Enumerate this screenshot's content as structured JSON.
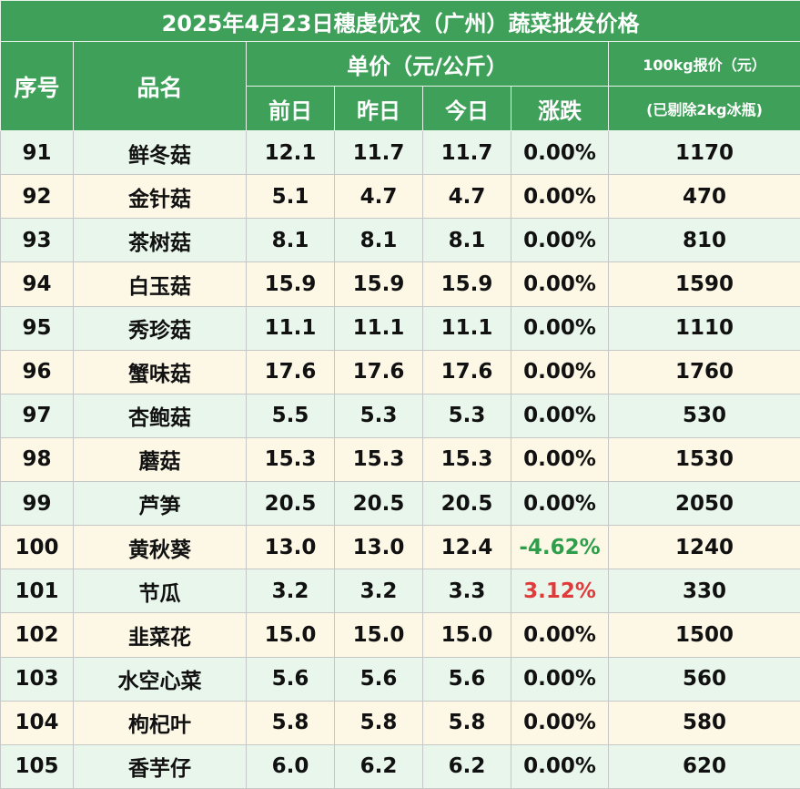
{
  "title": "2025年4月23日穗虔优农（广州）蔬菜批发价格",
  "headers": {
    "index": "序号",
    "name": "品名",
    "unit_price": "单价（元/公斤）",
    "prev_day": "前日",
    "yesterday": "昨日",
    "today": "今日",
    "change": "涨跌",
    "quote_100kg": "100kg报价（元）",
    "quote_note": "(已剔除2kg冰瓶)"
  },
  "rows": [
    {
      "index": "91",
      "name": "鲜冬菇",
      "prev": "12.1",
      "yest": "11.7",
      "today": "11.7",
      "change": "0.00%",
      "quote": "1170",
      "trend": "flat"
    },
    {
      "index": "92",
      "name": "金针菇",
      "prev": "5.1",
      "yest": "4.7",
      "today": "4.7",
      "change": "0.00%",
      "quote": "470",
      "trend": "flat"
    },
    {
      "index": "93",
      "name": "茶树菇",
      "prev": "8.1",
      "yest": "8.1",
      "today": "8.1",
      "change": "0.00%",
      "quote": "810",
      "trend": "flat"
    },
    {
      "index": "94",
      "name": "白玉菇",
      "prev": "15.9",
      "yest": "15.9",
      "today": "15.9",
      "change": "0.00%",
      "quote": "1590",
      "trend": "flat"
    },
    {
      "index": "95",
      "name": "秀珍菇",
      "prev": "11.1",
      "yest": "11.1",
      "today": "11.1",
      "change": "0.00%",
      "quote": "1110",
      "trend": "flat"
    },
    {
      "index": "96",
      "name": "蟹味菇",
      "prev": "17.6",
      "yest": "17.6",
      "today": "17.6",
      "change": "0.00%",
      "quote": "1760",
      "trend": "flat"
    },
    {
      "index": "97",
      "name": "杏鲍菇",
      "prev": "5.5",
      "yest": "5.3",
      "today": "5.3",
      "change": "0.00%",
      "quote": "530",
      "trend": "flat"
    },
    {
      "index": "98",
      "name": "蘑菇",
      "prev": "15.3",
      "yest": "15.3",
      "today": "15.3",
      "change": "0.00%",
      "quote": "1530",
      "trend": "flat"
    },
    {
      "index": "99",
      "name": "芦笋",
      "prev": "20.5",
      "yest": "20.5",
      "today": "20.5",
      "change": "0.00%",
      "quote": "2050",
      "trend": "flat"
    },
    {
      "index": "100",
      "name": "黄秋葵",
      "prev": "13.0",
      "yest": "13.0",
      "today": "12.4",
      "change": "-4.62%",
      "quote": "1240",
      "trend": "down"
    },
    {
      "index": "101",
      "name": "节瓜",
      "prev": "3.2",
      "yest": "3.2",
      "today": "3.3",
      "change": "3.12%",
      "quote": "330",
      "trend": "up"
    },
    {
      "index": "102",
      "name": "韭菜花",
      "prev": "15.0",
      "yest": "15.0",
      "today": "15.0",
      "change": "0.00%",
      "quote": "1500",
      "trend": "flat"
    },
    {
      "index": "103",
      "name": "水空心菜",
      "prev": "5.6",
      "yest": "5.6",
      "today": "5.6",
      "change": "0.00%",
      "quote": "560",
      "trend": "flat"
    },
    {
      "index": "104",
      "name": "枸杞叶",
      "prev": "5.8",
      "yest": "5.8",
      "today": "5.8",
      "change": "0.00%",
      "quote": "580",
      "trend": "flat"
    },
    {
      "index": "105",
      "name": "香芋仔",
      "prev": "6.0",
      "yest": "6.2",
      "today": "6.2",
      "change": "0.00%",
      "quote": "620",
      "trend": "flat"
    }
  ]
}
